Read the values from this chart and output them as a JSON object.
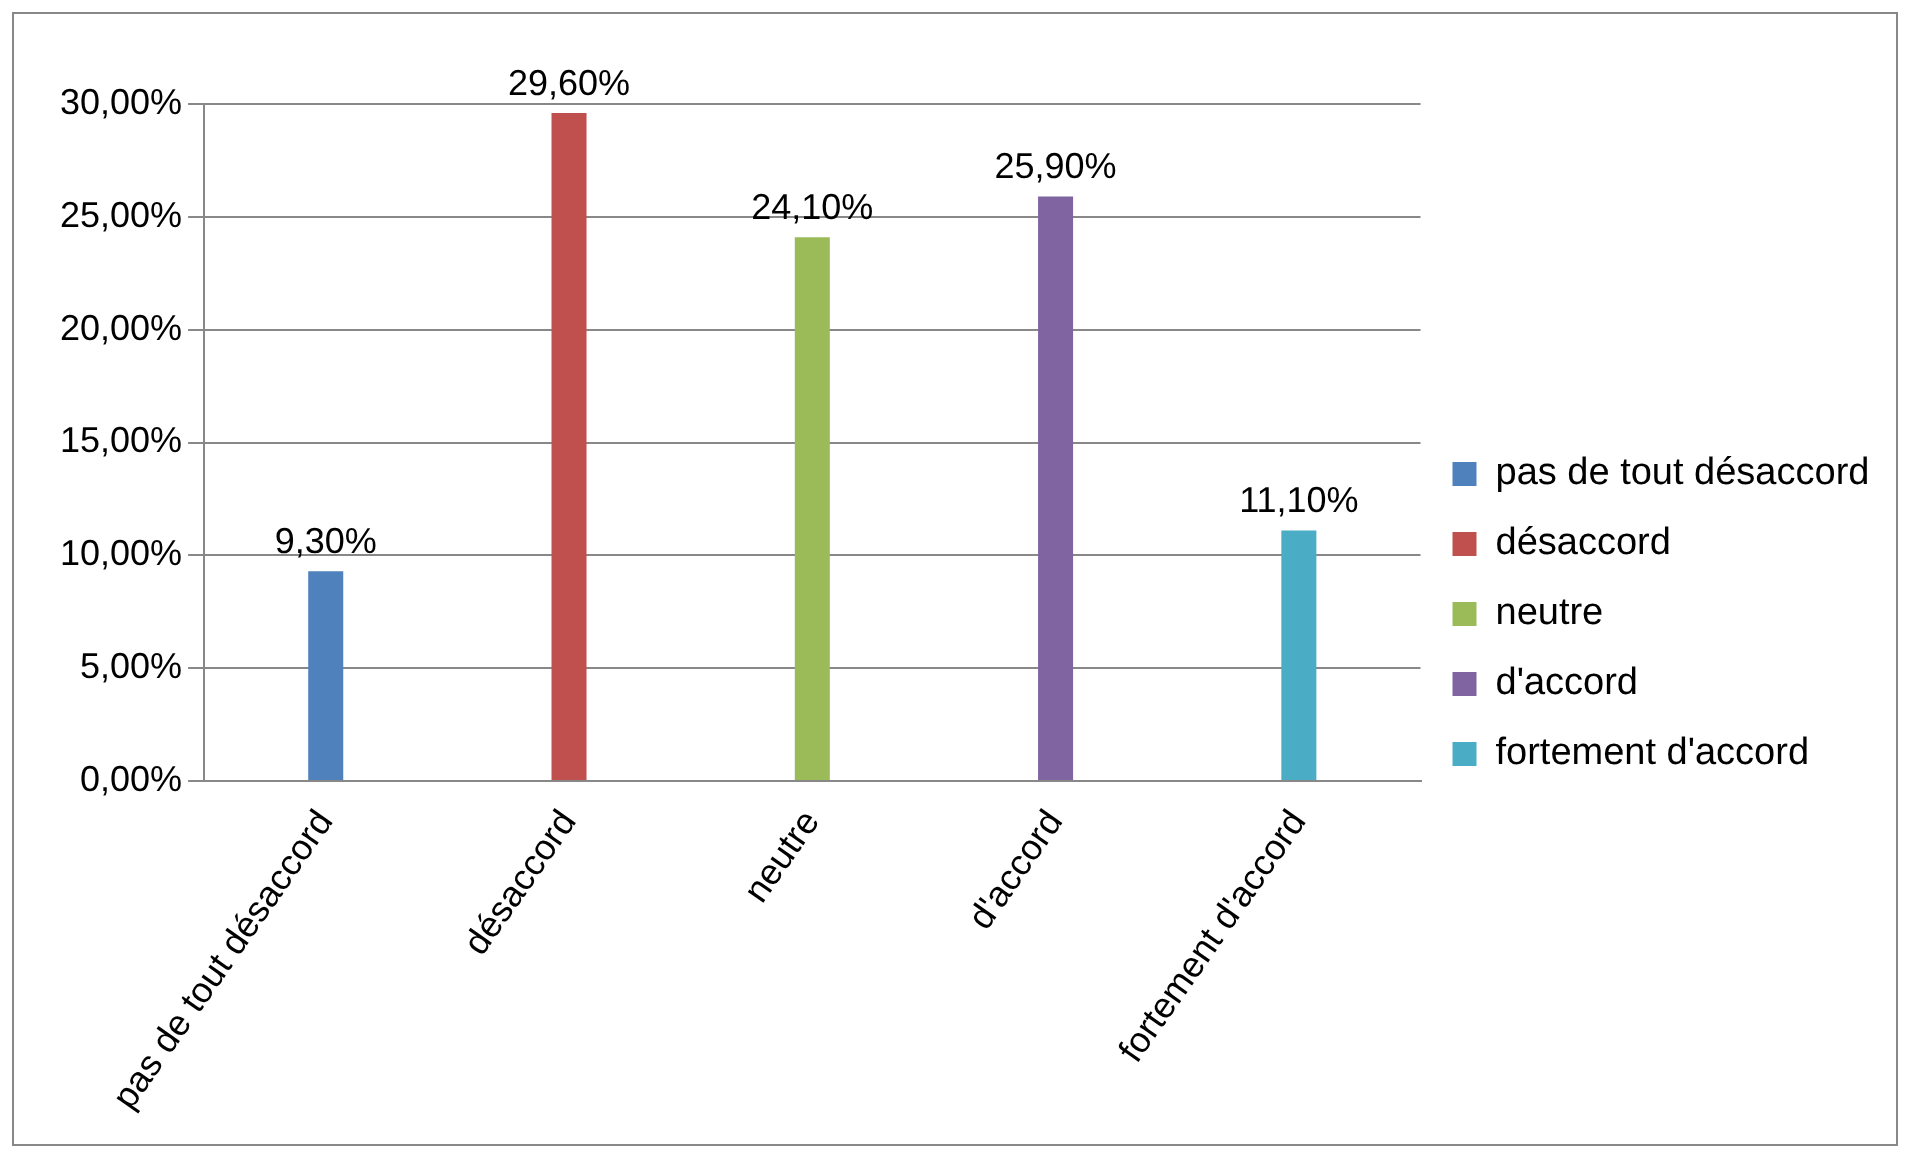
{
  "chart_data": {
    "type": "bar",
    "categories": [
      "pas de tout désaccord",
      "désaccord",
      "neutre",
      "d'accord",
      "fortement d'accord"
    ],
    "series": [
      {
        "name": "pas de tout désaccord",
        "color": "#4f81bd",
        "values": [
          9.3,
          null,
          null,
          null,
          null
        ],
        "value_labels": [
          "9,30%",
          null,
          null,
          null,
          null
        ]
      },
      {
        "name": "désaccord",
        "color": "#c0504d",
        "values": [
          null,
          29.6,
          null,
          null,
          null
        ],
        "value_labels": [
          null,
          "29,60%",
          null,
          null,
          null
        ]
      },
      {
        "name": "neutre",
        "color": "#9bbb59",
        "values": [
          null,
          null,
          24.1,
          null,
          null
        ],
        "value_labels": [
          null,
          null,
          "24,10%",
          null,
          null
        ]
      },
      {
        "name": "d'accord",
        "color": "#8064a2",
        "values": [
          null,
          null,
          null,
          25.9,
          null
        ],
        "value_labels": [
          null,
          null,
          null,
          "25,90%",
          null
        ]
      },
      {
        "name": "fortement d'accord",
        "color": "#4bacc6",
        "values": [
          null,
          null,
          null,
          null,
          11.1
        ],
        "value_labels": [
          null,
          null,
          null,
          null,
          "11,10%"
        ]
      }
    ],
    "ylim": [
      0,
      30
    ],
    "yticks": [
      {
        "value": 0,
        "label": "0,00%"
      },
      {
        "value": 5,
        "label": "5,00%"
      },
      {
        "value": 10,
        "label": "10,00%"
      },
      {
        "value": 15,
        "label": "15,00%"
      },
      {
        "value": 20,
        "label": "20,00%"
      },
      {
        "value": 25,
        "label": "25,00%"
      },
      {
        "value": 30,
        "label": "30,00%"
      }
    ],
    "grid": "y",
    "legend": "right"
  }
}
